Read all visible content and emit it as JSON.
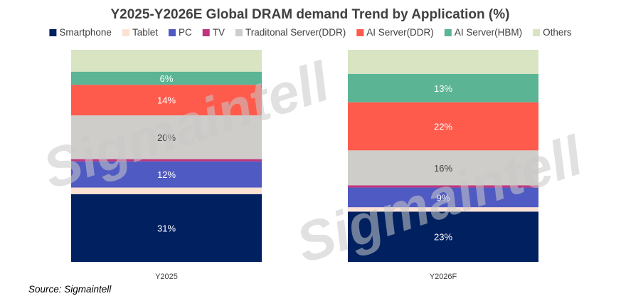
{
  "chart_data": {
    "type": "bar",
    "stacked": true,
    "normalized": true,
    "title": "Y2025-Y2026E Global DRAM demand Trend by Application (%)",
    "categories": [
      "Y2025",
      "Y2026F"
    ],
    "series": [
      {
        "name": "Smartphone",
        "color": "#002060",
        "values": [
          31,
          23
        ],
        "labels": [
          "31%",
          "23%"
        ],
        "label_color": "#ffffff"
      },
      {
        "name": "Tablet",
        "color": "#fbe2d5",
        "values": [
          3,
          2
        ],
        "labels": [
          "",
          ""
        ],
        "label_color": "#404040"
      },
      {
        "name": "PC",
        "color": "#4f5ac2",
        "values": [
          12,
          9
        ],
        "labels": [
          "12%",
          "9%"
        ],
        "label_color": "#ffffff"
      },
      {
        "name": "TV",
        "color": "#c0357c",
        "values": [
          1,
          1
        ],
        "labels": [
          "",
          ""
        ],
        "label_color": "#ffffff"
      },
      {
        "name": "Traditonal Server(DDR)",
        "color": "#cfcdc9",
        "values": [
          20,
          16
        ],
        "labels": [
          "20%",
          "16%"
        ],
        "label_color": "#404040"
      },
      {
        "name": "AI Server(DDR)",
        "color": "#ff5b4d",
        "values": [
          14,
          22
        ],
        "labels": [
          "14%",
          "22%"
        ],
        "label_color": "#ffffff"
      },
      {
        "name": "AI Server(HBM)",
        "color": "#5bb595",
        "values": [
          6,
          13
        ],
        "labels": [
          "6%",
          "13%"
        ],
        "label_color": "#ffffff"
      },
      {
        "name": "Others",
        "color": "#d9e4c3",
        "values": [
          10,
          11
        ],
        "labels": [
          "",
          ""
        ],
        "label_color": "#404040"
      }
    ],
    "ylim": [
      0,
      100
    ],
    "grid": false,
    "legend_position": "top"
  },
  "watermark": "Sigmaintell",
  "source_note": "Source: Sigmaintell"
}
